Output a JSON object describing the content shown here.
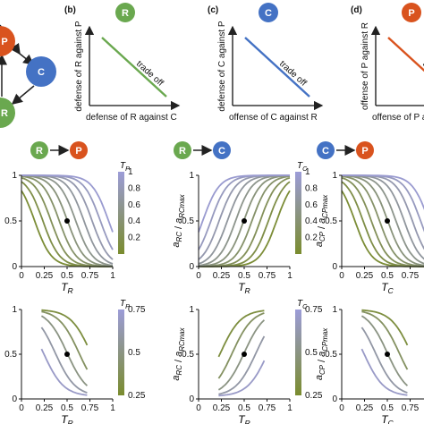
{
  "colors": {
    "R": "#6aa84f",
    "C": "#4472c4",
    "P": "#d9531e",
    "lowT": "#7a8c2e",
    "highT": "#9c9cd8"
  },
  "network": {
    "nodes": [
      "P",
      "C",
      "R"
    ]
  },
  "panels_top": [
    {
      "letter": "(b)",
      "node": "R",
      "ylabel": "defense of R against P",
      "xlabel": "defense of R against C",
      "label": "trade off",
      "line_color": "#6aa84f"
    },
    {
      "letter": "(c)",
      "node": "C",
      "ylabel": "defense of C against P",
      "xlabel": "offense of C against R",
      "label": "trade off",
      "line_color": "#4472c4"
    },
    {
      "letter": "(d)",
      "node": "P",
      "ylabel": "offense of P against R",
      "xlabel": "offense of P agains",
      "label": "trade off",
      "line_color": "#d9531e"
    }
  ],
  "interaction_labels": [
    {
      "from": "R",
      "to": "P"
    },
    {
      "from": "R",
      "to": "C"
    },
    {
      "from": "C",
      "to": "P"
    }
  ],
  "chart_data": [
    {
      "type": "line",
      "ylabel": "",
      "xlabel": "T_R",
      "xlim": [
        0,
        1
      ],
      "ylim": [
        0,
        1
      ],
      "xticks": [
        "0",
        "0.25",
        "0.5",
        "0.75",
        "1"
      ],
      "yticks": [
        "0",
        "0.5",
        "1"
      ],
      "direction": "decreasing",
      "colorbar": {
        "label": "T_P",
        "ticks": [
          "0.2",
          "0.4",
          "0.6",
          "0.8",
          "1"
        ],
        "range": [
          0,
          1
        ]
      },
      "point": [
        0.5,
        0.5
      ],
      "series_param": [
        0.05,
        0.15,
        0.25,
        0.35,
        0.45,
        0.55,
        0.65,
        0.75,
        0.85,
        0.95
      ]
    },
    {
      "type": "line",
      "ylabel": "a_RC / a_RCmax",
      "xlabel": "T_R",
      "xlim": [
        0,
        1
      ],
      "ylim": [
        0,
        1
      ],
      "xticks": [
        "0",
        "0.25",
        "0.5",
        "0.75",
        "1"
      ],
      "yticks": [
        "0",
        "0.5",
        "1"
      ],
      "direction": "increasing",
      "colorbar": {
        "label": "T_C",
        "ticks": [
          "0.2",
          "0.4",
          "0.6",
          "0.8",
          "1"
        ],
        "range": [
          0,
          1
        ]
      },
      "point": [
        0.5,
        0.5
      ],
      "series_param": [
        0.05,
        0.15,
        0.25,
        0.35,
        0.45,
        0.55,
        0.65,
        0.75,
        0.85,
        0.95
      ]
    },
    {
      "type": "line",
      "ylabel": "a_CP / a_CPmax",
      "xlabel": "T_C",
      "xlim": [
        0,
        1
      ],
      "ylim": [
        0,
        1
      ],
      "xticks": [
        "0",
        "0.25",
        "0.5",
        "0.75",
        "1"
      ],
      "yticks": [
        "0",
        "0.5",
        "1"
      ],
      "direction": "decreasing",
      "colorbar": {
        "label": "T_P",
        "ticks": [],
        "range": [
          0,
          1
        ]
      },
      "point": [
        0.5,
        0.5
      ],
      "series_param": [
        0.05,
        0.15,
        0.25,
        0.35,
        0.45,
        0.55,
        0.65,
        0.75,
        0.85,
        0.95
      ]
    },
    {
      "type": "line",
      "ylabel": "",
      "xlabel": "T_R",
      "xlim": [
        0,
        1
      ],
      "ylim": [
        0,
        1
      ],
      "xticks": [
        "0",
        "0.25",
        "0.5",
        "0.75",
        "1"
      ],
      "yticks": [
        "0",
        "0.5",
        "1"
      ],
      "direction": "decreasing",
      "colorbar": {
        "label": "T_P",
        "ticks": [
          "0.25",
          "0.5",
          "0.75"
        ],
        "range": [
          0.25,
          0.75
        ]
      },
      "point": [
        0.5,
        0.5
      ],
      "series_param": [
        0.3,
        0.4,
        0.5,
        0.6,
        0.7
      ]
    },
    {
      "type": "line",
      "ylabel": "a_RC / a_RCmax",
      "xlabel": "T_R",
      "xlim": [
        0,
        1
      ],
      "ylim": [
        0,
        1
      ],
      "xticks": [
        "0",
        "0.25",
        "0.5",
        "0.75",
        "1"
      ],
      "yticks": [
        "0",
        "0.5",
        "1"
      ],
      "direction": "increasing",
      "colorbar": {
        "label": "T_C",
        "ticks": [
          "0.25",
          "0.5",
          "0.75"
        ],
        "range": [
          0.25,
          0.75
        ]
      },
      "point": [
        0.5,
        0.5
      ],
      "series_param": [
        0.3,
        0.4,
        0.5,
        0.6,
        0.7
      ]
    },
    {
      "type": "line",
      "ylabel": "a_CP / a_CPmax",
      "xlabel": "T_C",
      "xlim": [
        0,
        1
      ],
      "ylim": [
        0,
        1
      ],
      "xticks": [
        "0",
        "0.25",
        "0.5",
        "0.75",
        "1"
      ],
      "yticks": [
        "0",
        "0.5",
        "1"
      ],
      "direction": "decreasing",
      "colorbar": {
        "label": "",
        "ticks": [],
        "range": [
          0.25,
          0.75
        ]
      },
      "point": [
        0.5,
        0.5
      ],
      "series_param": [
        0.3,
        0.4,
        0.5,
        0.6,
        0.7
      ]
    }
  ]
}
